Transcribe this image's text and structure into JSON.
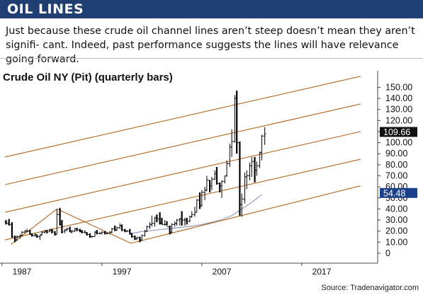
{
  "header": {
    "title": "OIL LINES"
  },
  "description": "Just because these crude oil channel lines aren’t steep doesn’t mean they aren’t signifi- cant. Indeed, past performance suggests the lines will have relevance going forward.",
  "source": "Source: Tradenavigator.com",
  "colors": {
    "banner": "#1f3f73",
    "channel": "#b5651d",
    "bars": "#000000",
    "curve": "#6b7fb0"
  },
  "chart_data": {
    "type": "ohlc",
    "title": "Crude Oil NY (Pit) (quarterly bars)",
    "xlabel": "",
    "ylabel": "",
    "xlim": [
      1984.8,
      2022.6
    ],
    "ylim": [
      -9,
      165
    ],
    "x_ticks": [
      1987,
      1997,
      2007,
      2017
    ],
    "x_tick_labels": [
      "1987",
      "1997",
      "2007",
      "2017"
    ],
    "y_ticks": [
      0,
      10,
      20,
      30,
      40,
      50,
      60,
      70,
      80,
      90,
      100,
      110,
      120,
      130,
      140,
      150
    ],
    "y_tick_labels": [
      "0",
      "10.00",
      "20.00",
      "30.00",
      "40.00",
      "50.00",
      "60.00",
      "70.00",
      "80.00",
      "90.00",
      "100.00",
      "110.00",
      "120.00",
      "130.00",
      "140.00",
      "150.00"
    ],
    "price_labels": [
      {
        "text": "109.66",
        "value": 109.66,
        "style": "dark"
      },
      {
        "text": "54.48",
        "value": 54.48,
        "style": "blue"
      }
    ],
    "series": [
      {
        "type": "ohlc",
        "bars": [
          {
            "x": 1985.4,
            "h": 30,
            "l": 26,
            "o": 28,
            "c": 27
          },
          {
            "x": 1985.7,
            "h": 31,
            "l": 25,
            "o": 27,
            "c": 26
          },
          {
            "x": 1986.0,
            "h": 28,
            "l": 14,
            "o": 26,
            "c": 15
          },
          {
            "x": 1986.3,
            "h": 16,
            "l": 10,
            "o": 14,
            "c": 12
          },
          {
            "x": 1986.5,
            "h": 16,
            "l": 11,
            "o": 12,
            "c": 15
          },
          {
            "x": 1986.8,
            "h": 17,
            "l": 13,
            "o": 15,
            "c": 16
          },
          {
            "x": 1987.0,
            "h": 20,
            "l": 15,
            "o": 16,
            "c": 19
          },
          {
            "x": 1987.3,
            "h": 21,
            "l": 18,
            "o": 19,
            "c": 20
          },
          {
            "x": 1987.5,
            "h": 22,
            "l": 19,
            "o": 20,
            "c": 20
          },
          {
            "x": 1987.8,
            "h": 21,
            "l": 17,
            "o": 20,
            "c": 17
          },
          {
            "x": 1988.0,
            "h": 18,
            "l": 15,
            "o": 17,
            "c": 16
          },
          {
            "x": 1988.3,
            "h": 18,
            "l": 15,
            "o": 16,
            "c": 17
          },
          {
            "x": 1988.5,
            "h": 17,
            "l": 14,
            "o": 16,
            "c": 15
          },
          {
            "x": 1988.8,
            "h": 17,
            "l": 12,
            "o": 15,
            "c": 16
          },
          {
            "x": 1989.0,
            "h": 20,
            "l": 16,
            "o": 17,
            "c": 19
          },
          {
            "x": 1989.3,
            "h": 21,
            "l": 18,
            "o": 19,
            "c": 20
          },
          {
            "x": 1989.5,
            "h": 21,
            "l": 18,
            "o": 20,
            "c": 19
          },
          {
            "x": 1989.8,
            "h": 22,
            "l": 19,
            "o": 20,
            "c": 21
          },
          {
            "x": 1990.0,
            "h": 22,
            "l": 18,
            "o": 21,
            "c": 20
          },
          {
            "x": 1990.3,
            "h": 20,
            "l": 16,
            "o": 19,
            "c": 17
          },
          {
            "x": 1990.5,
            "h": 40,
            "l": 17,
            "o": 17,
            "c": 35
          },
          {
            "x": 1990.8,
            "h": 41,
            "l": 25,
            "o": 35,
            "c": 28
          },
          {
            "x": 1991.0,
            "h": 30,
            "l": 18,
            "o": 26,
            "c": 19
          },
          {
            "x": 1991.3,
            "h": 22,
            "l": 18,
            "o": 20,
            "c": 21
          },
          {
            "x": 1991.5,
            "h": 23,
            "l": 20,
            "o": 21,
            "c": 22
          },
          {
            "x": 1991.8,
            "h": 24,
            "l": 19,
            "o": 22,
            "c": 20
          },
          {
            "x": 1992.0,
            "h": 21,
            "l": 18,
            "o": 19,
            "c": 20
          },
          {
            "x": 1992.3,
            "h": 23,
            "l": 19,
            "o": 20,
            "c": 22
          },
          {
            "x": 1992.5,
            "h": 23,
            "l": 20,
            "o": 22,
            "c": 21
          },
          {
            "x": 1992.8,
            "h": 22,
            "l": 19,
            "o": 21,
            "c": 20
          },
          {
            "x": 1993.0,
            "h": 21,
            "l": 18,
            "o": 20,
            "c": 19
          },
          {
            "x": 1993.3,
            "h": 21,
            "l": 18,
            "o": 19,
            "c": 19
          },
          {
            "x": 1993.5,
            "h": 19,
            "l": 16,
            "o": 18,
            "c": 17
          },
          {
            "x": 1993.8,
            "h": 18,
            "l": 14,
            "o": 17,
            "c": 15
          },
          {
            "x": 1994.0,
            "h": 16,
            "l": 14,
            "o": 15,
            "c": 15
          },
          {
            "x": 1994.3,
            "h": 20,
            "l": 15,
            "o": 15,
            "c": 19
          },
          {
            "x": 1994.5,
            "h": 21,
            "l": 17,
            "o": 19,
            "c": 18
          },
          {
            "x": 1994.8,
            "h": 19,
            "l": 17,
            "o": 18,
            "c": 18
          },
          {
            "x": 1995.0,
            "h": 20,
            "l": 17,
            "o": 18,
            "c": 19
          },
          {
            "x": 1995.3,
            "h": 20,
            "l": 17,
            "o": 19,
            "c": 18
          },
          {
            "x": 1995.5,
            "h": 19,
            "l": 17,
            "o": 18,
            "c": 18
          },
          {
            "x": 1995.8,
            "h": 20,
            "l": 17,
            "o": 18,
            "c": 19
          },
          {
            "x": 1996.0,
            "h": 23,
            "l": 18,
            "o": 19,
            "c": 22
          },
          {
            "x": 1996.3,
            "h": 25,
            "l": 20,
            "o": 22,
            "c": 21
          },
          {
            "x": 1996.5,
            "h": 24,
            "l": 20,
            "o": 21,
            "c": 23
          },
          {
            "x": 1996.8,
            "h": 27,
            "l": 22,
            "o": 23,
            "c": 25
          },
          {
            "x": 1997.0,
            "h": 26,
            "l": 20,
            "o": 25,
            "c": 21
          },
          {
            "x": 1997.3,
            "h": 22,
            "l": 19,
            "o": 21,
            "c": 20
          },
          {
            "x": 1997.5,
            "h": 21,
            "l": 19,
            "o": 20,
            "c": 20
          },
          {
            "x": 1997.8,
            "h": 22,
            "l": 17,
            "o": 20,
            "c": 18
          },
          {
            "x": 1998.0,
            "h": 18,
            "l": 14,
            "o": 17,
            "c": 15
          },
          {
            "x": 1998.3,
            "h": 16,
            "l": 12,
            "o": 15,
            "c": 13
          },
          {
            "x": 1998.5,
            "h": 15,
            "l": 12,
            "o": 13,
            "c": 14
          },
          {
            "x": 1998.8,
            "h": 15,
            "l": 10,
            "o": 14,
            "c": 12
          },
          {
            "x": 1999.0,
            "h": 17,
            "l": 11,
            "o": 12,
            "c": 16
          },
          {
            "x": 1999.3,
            "h": 21,
            "l": 15,
            "o": 16,
            "c": 20
          },
          {
            "x": 1999.5,
            "h": 25,
            "l": 19,
            "o": 20,
            "c": 24
          },
          {
            "x": 1999.8,
            "h": 28,
            "l": 22,
            "o": 24,
            "c": 26
          },
          {
            "x": 2000.0,
            "h": 34,
            "l": 24,
            "o": 26,
            "c": 27
          },
          {
            "x": 2000.3,
            "h": 33,
            "l": 24,
            "o": 27,
            "c": 32
          },
          {
            "x": 2000.5,
            "h": 35,
            "l": 28,
            "o": 32,
            "c": 31
          },
          {
            "x": 2000.8,
            "h": 37,
            "l": 26,
            "o": 31,
            "c": 27
          },
          {
            "x": 2001.0,
            "h": 32,
            "l": 26,
            "o": 27,
            "c": 26
          },
          {
            "x": 2001.3,
            "h": 30,
            "l": 25,
            "o": 26,
            "c": 26
          },
          {
            "x": 2001.5,
            "h": 29,
            "l": 25,
            "o": 26,
            "c": 24
          },
          {
            "x": 2001.8,
            "h": 25,
            "l": 17,
            "o": 24,
            "c": 19
          },
          {
            "x": 2002.0,
            "h": 27,
            "l": 18,
            "o": 19,
            "c": 26
          },
          {
            "x": 2002.3,
            "h": 29,
            "l": 24,
            "o": 26,
            "c": 27
          },
          {
            "x": 2002.5,
            "h": 31,
            "l": 25,
            "o": 27,
            "c": 30
          },
          {
            "x": 2002.8,
            "h": 32,
            "l": 25,
            "o": 30,
            "c": 31
          },
          {
            "x": 2003.0,
            "h": 38,
            "l": 25,
            "o": 31,
            "c": 30
          },
          {
            "x": 2003.3,
            "h": 32,
            "l": 25,
            "o": 30,
            "c": 30
          },
          {
            "x": 2003.5,
            "h": 32,
            "l": 26,
            "o": 30,
            "c": 29
          },
          {
            "x": 2003.8,
            "h": 34,
            "l": 28,
            "o": 29,
            "c": 33
          },
          {
            "x": 2004.0,
            "h": 38,
            "l": 32,
            "o": 33,
            "c": 35
          },
          {
            "x": 2004.3,
            "h": 42,
            "l": 33,
            "o": 35,
            "c": 37
          },
          {
            "x": 2004.5,
            "h": 49,
            "l": 37,
            "o": 37,
            "c": 48
          },
          {
            "x": 2004.8,
            "h": 55,
            "l": 40,
            "o": 48,
            "c": 43
          },
          {
            "x": 2005.0,
            "h": 57,
            "l": 42,
            "o": 43,
            "c": 55
          },
          {
            "x": 2005.3,
            "h": 60,
            "l": 48,
            "o": 55,
            "c": 57
          },
          {
            "x": 2005.5,
            "h": 70,
            "l": 56,
            "o": 57,
            "c": 66
          },
          {
            "x": 2005.8,
            "h": 66,
            "l": 55,
            "o": 66,
            "c": 61
          },
          {
            "x": 2006.0,
            "h": 69,
            "l": 57,
            "o": 61,
            "c": 67
          },
          {
            "x": 2006.3,
            "h": 75,
            "l": 66,
            "o": 67,
            "c": 72
          },
          {
            "x": 2006.5,
            "h": 78,
            "l": 62,
            "o": 72,
            "c": 63
          },
          {
            "x": 2006.8,
            "h": 64,
            "l": 55,
            "o": 63,
            "c": 61
          },
          {
            "x": 2007.0,
            "h": 66,
            "l": 50,
            "o": 61,
            "c": 65
          },
          {
            "x": 2007.3,
            "h": 70,
            "l": 63,
            "o": 65,
            "c": 70
          },
          {
            "x": 2007.5,
            "h": 84,
            "l": 69,
            "o": 70,
            "c": 81
          },
          {
            "x": 2007.8,
            "h": 99,
            "l": 78,
            "o": 81,
            "c": 96
          },
          {
            "x": 2008.0,
            "h": 112,
            "l": 87,
            "o": 96,
            "c": 101
          },
          {
            "x": 2008.3,
            "h": 143,
            "l": 100,
            "o": 101,
            "c": 140
          },
          {
            "x": 2008.5,
            "h": 147,
            "l": 90,
            "o": 140,
            "c": 100
          },
          {
            "x": 2008.8,
            "h": 101,
            "l": 34,
            "o": 100,
            "c": 44
          },
          {
            "x": 2009.0,
            "h": 54,
            "l": 33,
            "o": 44,
            "c": 49
          },
          {
            "x": 2009.3,
            "h": 73,
            "l": 45,
            "o": 49,
            "c": 69
          },
          {
            "x": 2009.5,
            "h": 75,
            "l": 58,
            "o": 69,
            "c": 70
          },
          {
            "x": 2009.8,
            "h": 82,
            "l": 66,
            "o": 70,
            "c": 79
          },
          {
            "x": 2010.0,
            "h": 87,
            "l": 69,
            "o": 79,
            "c": 83
          },
          {
            "x": 2010.3,
            "h": 87,
            "l": 64,
            "o": 83,
            "c": 75
          },
          {
            "x": 2010.5,
            "h": 83,
            "l": 70,
            "o": 75,
            "c": 79
          },
          {
            "x": 2010.8,
            "h": 92,
            "l": 77,
            "o": 79,
            "c": 91
          },
          {
            "x": 2011.0,
            "h": 107,
            "l": 84,
            "o": 91,
            "c": 106
          },
          {
            "x": 2011.3,
            "h": 114,
            "l": 98,
            "o": 106,
            "c": 108
          }
        ]
      },
      {
        "type": "line",
        "x": [
          1997.9,
          1999.0,
          2000.0,
          2001.0,
          2002.0,
          2003.0,
          2004.0,
          2005.0,
          2006.0,
          2007.0,
          2008.0,
          2009.0,
          2010.0,
          2011.0
        ],
        "y": [
          18,
          19.5,
          20.5,
          21.5,
          22.5,
          23.5,
          24.5,
          26,
          28,
          30.5,
          34,
          40,
          46,
          53
        ]
      }
    ],
    "channel_lines": [
      {
        "x": [
          1985.3,
          2020.9
        ],
        "y": [
          87,
          160
        ]
      },
      {
        "x": [
          1985.3,
          2020.9
        ],
        "y": [
          62,
          135
        ]
      },
      {
        "x": [
          1985.3,
          2020.9
        ],
        "y": [
          37,
          110
        ]
      },
      {
        "x": [
          1985.3,
          2020.9
        ],
        "y": [
          12,
          85
        ]
      },
      {
        "x": [
          1997.9,
          2020.9
        ],
        "y": [
          9,
          61
        ]
      },
      {
        "x": [
          1985.9,
          1990.5
        ],
        "y": [
          8,
          40
        ]
      },
      {
        "x": [
          1990.5,
          1997.9
        ],
        "y": [
          40,
          9
        ]
      }
    ],
    "grid": false
  }
}
